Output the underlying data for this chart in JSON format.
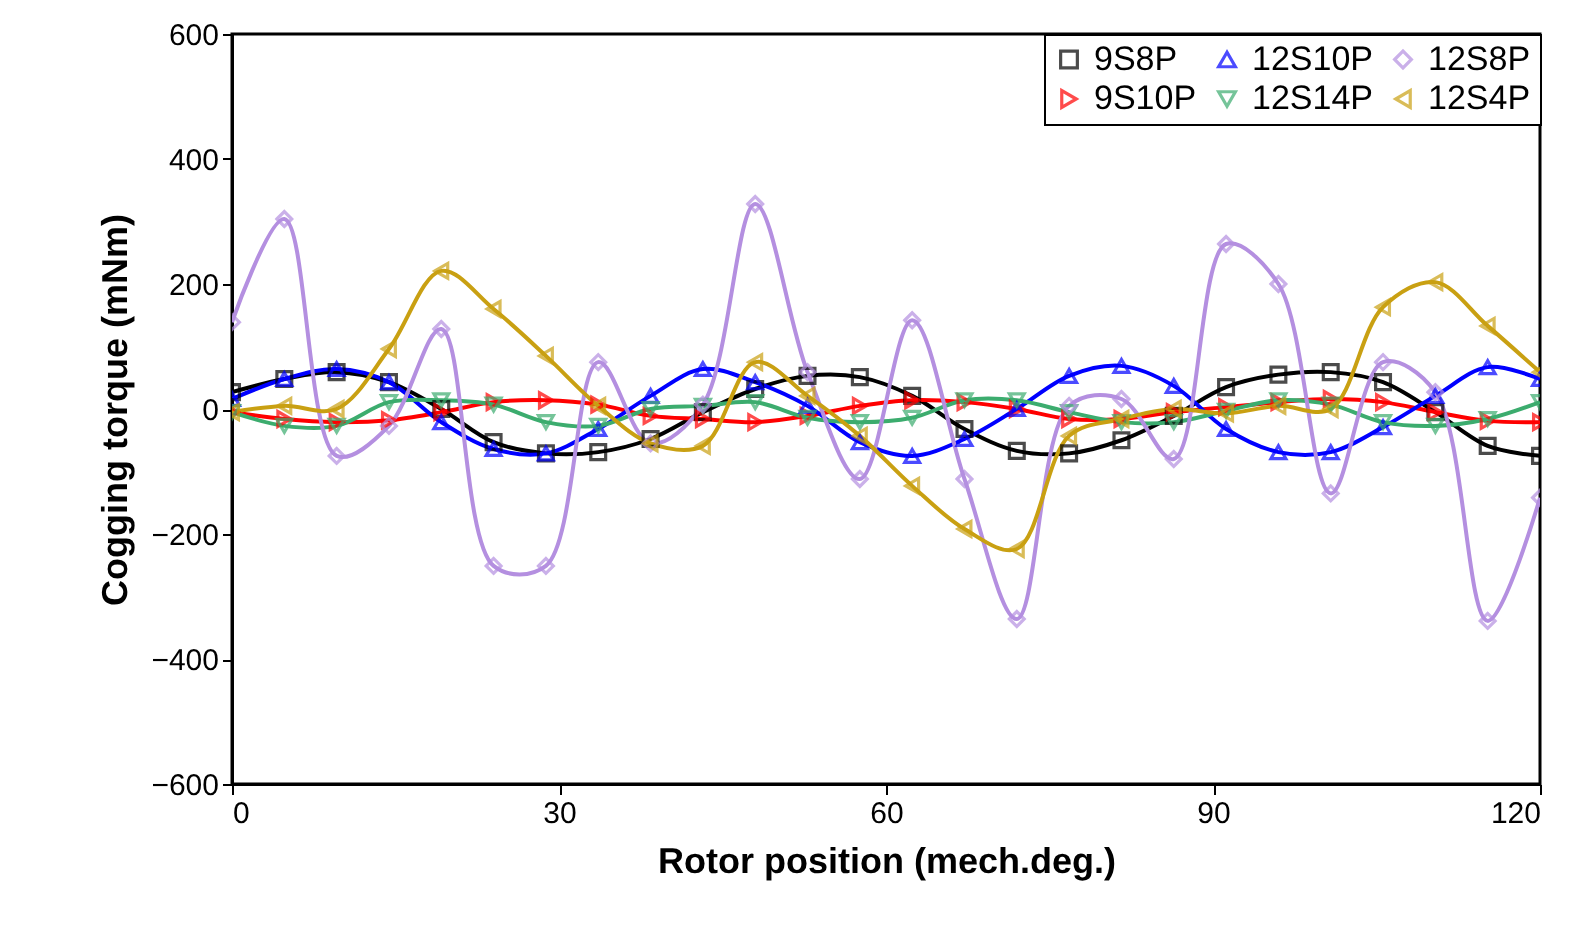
{
  "chart_data": {
    "type": "line",
    "xlabel": "Rotor position (mech.deg.)",
    "ylabel": "Cogging torque (mNm)",
    "x": [
      0,
      4.8,
      9.6,
      14.4,
      19.2,
      24,
      28.8,
      33.6,
      38.4,
      43.2,
      48,
      52.8,
      57.6,
      62.4,
      67.2,
      72,
      76.8,
      81.6,
      86.4,
      91.2,
      96,
      100.8,
      105.6,
      110.4,
      115.2,
      120
    ],
    "xlim": [
      0,
      120
    ],
    "xticks": [
      0,
      30,
      60,
      90,
      120
    ],
    "ylim": [
      -600,
      600
    ],
    "yticks": [
      -600,
      -400,
      -200,
      0,
      200,
      400,
      600
    ],
    "grid": false,
    "legend": "top right",
    "line_style": "solid",
    "series": [
      {
        "name": "9S8P",
        "color": "#000000",
        "marker": "square",
        "values": [
          27,
          48,
          59,
          43,
          0,
          -53,
          -71,
          -69,
          -48,
          -5,
          32,
          53,
          51,
          21,
          -32,
          -67,
          -71,
          -50,
          -11,
          35,
          55,
          59,
          43,
          -5,
          -59,
          -75
        ]
      },
      {
        "name": "9S10P",
        "color": "#ff0000",
        "marker": "triangle-right",
        "values": [
          -5,
          -16,
          -21,
          -18,
          -5,
          11,
          14,
          7,
          -11,
          -16,
          -21,
          -11,
          5,
          14,
          11,
          0,
          -16,
          -16,
          -5,
          3,
          11,
          16,
          11,
          -5,
          -19,
          -21
        ]
      },
      {
        "name": "12S10P",
        "color": "#0000ff",
        "marker": "triangle-up",
        "values": [
          16,
          48,
          64,
          43,
          -21,
          -64,
          -71,
          -32,
          21,
          64,
          43,
          5,
          -53,
          -75,
          -48,
          0,
          53,
          69,
          37,
          -32,
          -69,
          -69,
          -29,
          21,
          67,
          48
        ]
      },
      {
        "name": "12S14P",
        "color": "#3cac6e",
        "marker": "triangle-down",
        "values": [
          -5,
          -27,
          -27,
          11,
          14,
          7,
          -21,
          -27,
          0,
          5,
          11,
          -14,
          -21,
          -14,
          14,
          14,
          -5,
          -21,
          -21,
          -3,
          14,
          7,
          -21,
          -27,
          -16,
          11
        ]
      },
      {
        "name": "12S8P",
        "color": "#b48fe0",
        "marker": "diamond",
        "values": [
          139,
          304,
          -75,
          -27,
          128,
          -251,
          -251,
          75,
          -55,
          7,
          328,
          59,
          -112,
          142,
          -112,
          -336,
          5,
          16,
          -80,
          264,
          200,
          -135,
          75,
          27,
          -339,
          -142
        ]
      },
      {
        "name": "12S4P",
        "color": "#c9a012",
        "marker": "triangle-left",
        "values": [
          -5,
          5,
          0,
          96,
          221,
          160,
          85,
          5,
          -55,
          -59,
          75,
          21,
          -43,
          -123,
          -192,
          -224,
          -43,
          -16,
          0,
          -7,
          5,
          0,
          163,
          203,
          133,
          59
        ]
      }
    ]
  }
}
